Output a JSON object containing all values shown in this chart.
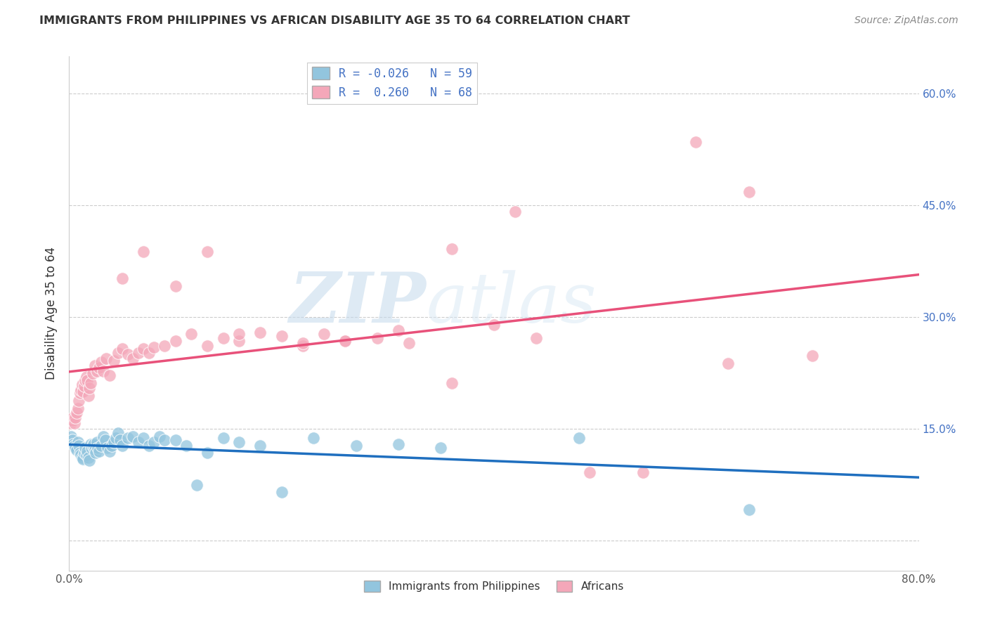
{
  "title": "IMMIGRANTS FROM PHILIPPINES VS AFRICAN DISABILITY AGE 35 TO 64 CORRELATION CHART",
  "source": "Source: ZipAtlas.com",
  "ylabel": "Disability Age 35 to 64",
  "xlim": [
    0.0,
    0.8
  ],
  "ylim": [
    -0.04,
    0.65
  ],
  "yticks": [
    0.0,
    0.15,
    0.3,
    0.45,
    0.6
  ],
  "yticklabels": [
    "",
    "15.0%",
    "30.0%",
    "45.0%",
    "60.0%"
  ],
  "xtick_positions": [
    0.0,
    0.1,
    0.2,
    0.3,
    0.4,
    0.5,
    0.6,
    0.7,
    0.8
  ],
  "xticklabels": [
    "0.0%",
    "",
    "",
    "",
    "",
    "",
    "",
    "",
    "80.0%"
  ],
  "blue_color": "#92c5de",
  "pink_color": "#f4a7b9",
  "blue_line_color": "#1f6fbf",
  "pink_line_color": "#e8517a",
  "watermark_zip": "ZIP",
  "watermark_atlas": "atlas",
  "blue_x": [
    0.002,
    0.003,
    0.004,
    0.005,
    0.006,
    0.007,
    0.008,
    0.009,
    0.01,
    0.011,
    0.012,
    0.013,
    0.014,
    0.015,
    0.016,
    0.017,
    0.018,
    0.019,
    0.02,
    0.021,
    0.022,
    0.023,
    0.024,
    0.025,
    0.026,
    0.027,
    0.028,
    0.03,
    0.032,
    0.034,
    0.036,
    0.038,
    0.04,
    0.042,
    0.044,
    0.046,
    0.048,
    0.05,
    0.055,
    0.06,
    0.065,
    0.07,
    0.075,
    0.08,
    0.085,
    0.09,
    0.1,
    0.11,
    0.12,
    0.13,
    0.145,
    0.16,
    0.18,
    0.2,
    0.23,
    0.27,
    0.31,
    0.35,
    0.48,
    0.64
  ],
  "blue_y": [
    0.14,
    0.135,
    0.13,
    0.128,
    0.125,
    0.122,
    0.132,
    0.128,
    0.118,
    0.115,
    0.112,
    0.11,
    0.118,
    0.125,
    0.115,
    0.12,
    0.112,
    0.108,
    0.13,
    0.125,
    0.128,
    0.13,
    0.122,
    0.118,
    0.132,
    0.125,
    0.12,
    0.128,
    0.14,
    0.135,
    0.125,
    0.12,
    0.128,
    0.132,
    0.138,
    0.145,
    0.135,
    0.128,
    0.138,
    0.14,
    0.132,
    0.138,
    0.128,
    0.132,
    0.14,
    0.135,
    0.135,
    0.128,
    0.075,
    0.118,
    0.138,
    0.132,
    0.128,
    0.065,
    0.138,
    0.128,
    0.13,
    0.125,
    0.138,
    0.042
  ],
  "pink_x": [
    0.002,
    0.003,
    0.004,
    0.005,
    0.006,
    0.007,
    0.008,
    0.009,
    0.01,
    0.011,
    0.012,
    0.013,
    0.014,
    0.015,
    0.016,
    0.017,
    0.018,
    0.019,
    0.02,
    0.022,
    0.024,
    0.026,
    0.028,
    0.03,
    0.032,
    0.035,
    0.038,
    0.042,
    0.046,
    0.05,
    0.055,
    0.06,
    0.065,
    0.07,
    0.075,
    0.08,
    0.09,
    0.1,
    0.115,
    0.13,
    0.145,
    0.16,
    0.18,
    0.2,
    0.22,
    0.24,
    0.26,
    0.29,
    0.32,
    0.36,
    0.4,
    0.44,
    0.49,
    0.54,
    0.59,
    0.64,
    0.05,
    0.07,
    0.1,
    0.13,
    0.16,
    0.22,
    0.26,
    0.31,
    0.36,
    0.42,
    0.62,
    0.7
  ],
  "pink_y": [
    0.158,
    0.162,
    0.165,
    0.158,
    0.165,
    0.172,
    0.178,
    0.188,
    0.198,
    0.202,
    0.21,
    0.2,
    0.208,
    0.215,
    0.22,
    0.215,
    0.195,
    0.205,
    0.212,
    0.225,
    0.235,
    0.228,
    0.232,
    0.24,
    0.228,
    0.245,
    0.222,
    0.242,
    0.252,
    0.258,
    0.25,
    0.245,
    0.252,
    0.258,
    0.252,
    0.26,
    0.262,
    0.268,
    0.278,
    0.262,
    0.272,
    0.268,
    0.28,
    0.275,
    0.262,
    0.278,
    0.268,
    0.272,
    0.265,
    0.212,
    0.29,
    0.272,
    0.092,
    0.092,
    0.535,
    0.468,
    0.352,
    0.388,
    0.342,
    0.388,
    0.278,
    0.265,
    0.268,
    0.282,
    0.392,
    0.442,
    0.238,
    0.248
  ]
}
